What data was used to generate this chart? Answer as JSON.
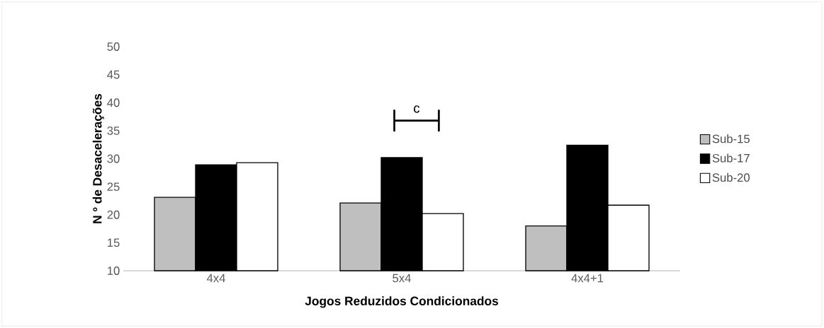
{
  "chart_data": {
    "type": "bar",
    "xlabel": "Jogos Reduzidos Condicionados",
    "ylabel": "N º de Desacelerações",
    "categories": [
      "4x4",
      "5x4",
      "4x4+1"
    ],
    "series": [
      {
        "name": "Sub-15",
        "color": "#bfbfbf",
        "values": [
          23.1,
          22.1,
          18.0
        ]
      },
      {
        "name": "Sub-17",
        "color": "#000000",
        "values": [
          28.9,
          30.2,
          32.4
        ]
      },
      {
        "name": "Sub-20",
        "color": "#ffffff",
        "values": [
          29.3,
          20.2,
          21.7
        ]
      }
    ],
    "ylim": [
      10,
      50
    ],
    "yticks": [
      10,
      15,
      20,
      25,
      30,
      35,
      40,
      45,
      50
    ],
    "grid": false,
    "legend": "right",
    "annotations": [
      "c"
    ]
  }
}
